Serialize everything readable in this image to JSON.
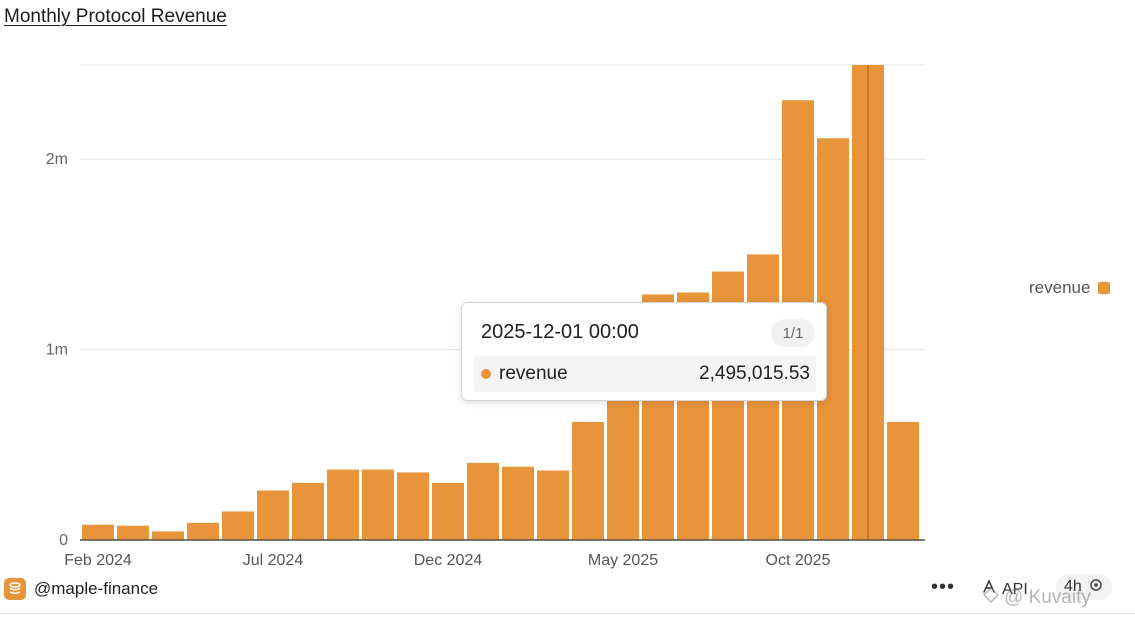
{
  "title": "Monthly Protocol Revenue",
  "chart_data": {
    "type": "bar",
    "x": [
      "2024-02",
      "2024-03",
      "2024-04",
      "2024-05",
      "2024-06",
      "2024-07",
      "2024-08",
      "2024-09",
      "2024-10",
      "2024-11",
      "2024-12",
      "2025-01",
      "2025-02",
      "2025-03",
      "2025-04",
      "2025-05",
      "2025-06",
      "2025-07",
      "2025-08",
      "2025-09",
      "2025-10",
      "2025-11",
      "2025-12",
      "2026-01"
    ],
    "series": [
      {
        "name": "revenue",
        "values": [
          80000,
          75000,
          45000,
          90000,
          150000,
          260000,
          300000,
          370000,
          370000,
          355000,
          300000,
          405000,
          385000,
          365000,
          620000,
          750000,
          1290000,
          1300000,
          1410000,
          1500000,
          2310000,
          2110000,
          2495015.53,
          620000
        ]
      }
    ],
    "x_tick_labels": [
      {
        "label": "Feb 2024",
        "index": 0
      },
      {
        "label": "Jul 2024",
        "index": 5
      },
      {
        "label": "Dec 2024",
        "index": 10
      },
      {
        "label": "May 2025",
        "index": 15
      },
      {
        "label": "Oct 2025",
        "index": 20
      }
    ],
    "y_ticks": [
      {
        "value": 0,
        "label": "0"
      },
      {
        "value": 1000000,
        "label": "1m"
      },
      {
        "value": 2000000,
        "label": "2m"
      }
    ],
    "ylim": [
      0,
      2495015.53
    ],
    "grid": true,
    "legend_position": "right",
    "bar_color": "#e8943a",
    "highlight_index": 22,
    "highlight_color": "#c8762a"
  },
  "legend": {
    "label": "revenue"
  },
  "tooltip": {
    "date": "2025-12-01 00:00",
    "page": "1/1",
    "series": "revenue",
    "value": "2,495,015.53"
  },
  "footer": {
    "handle": "@maple-finance",
    "more": "•••",
    "api_label": "API",
    "interval": "4h",
    "brand_icon": "stacked-coins-icon"
  },
  "watermark": "@ Kuvaity"
}
